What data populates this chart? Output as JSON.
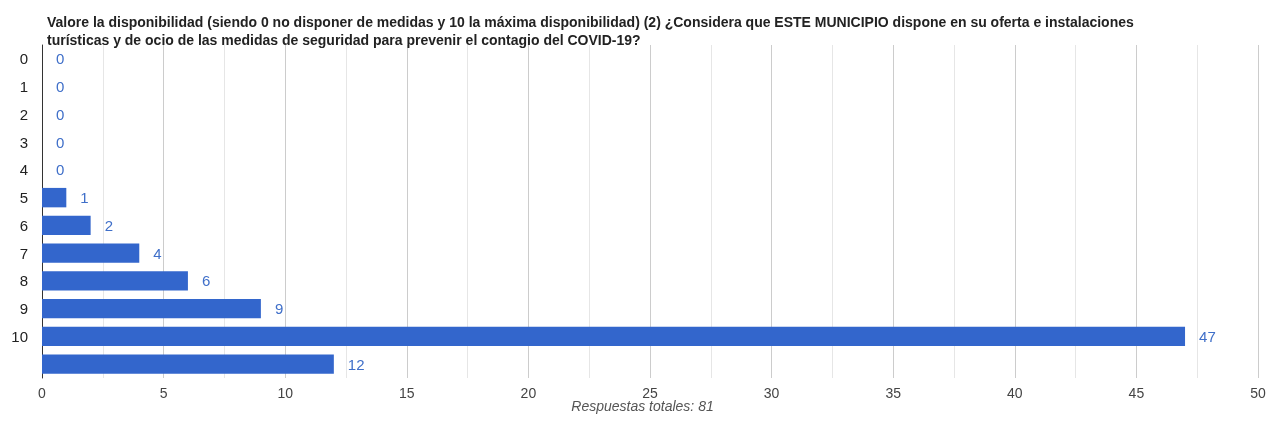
{
  "chart_data": {
    "type": "bar",
    "orientation": "horizontal",
    "title": "Valore la disponibilidad (siendo 0 no disponer de medidas y 10 la máxima disponibilidad) (2) ¿Considera que ESTE MUNICIPIO dispone en su oferta e instalaciones turísticas y de ocio de las medidas de seguridad para prevenir el contagio del COVID-19?",
    "annotations": [
      "Respuestas totales: 81"
    ],
    "categories": [
      "0",
      "1",
      "2",
      "3",
      "4",
      "5",
      "6",
      "7",
      "8",
      "9",
      "10",
      null
    ],
    "values": [
      0,
      0,
      0,
      0,
      0,
      1,
      2,
      4,
      6,
      9,
      47,
      12
    ],
    "color": "#3366cc",
    "xlim": [
      0,
      50
    ],
    "xticks": [
      0,
      5,
      10,
      15,
      20,
      25,
      30,
      35,
      40,
      45,
      50
    ],
    "grid": "x",
    "data_labels": true
  }
}
